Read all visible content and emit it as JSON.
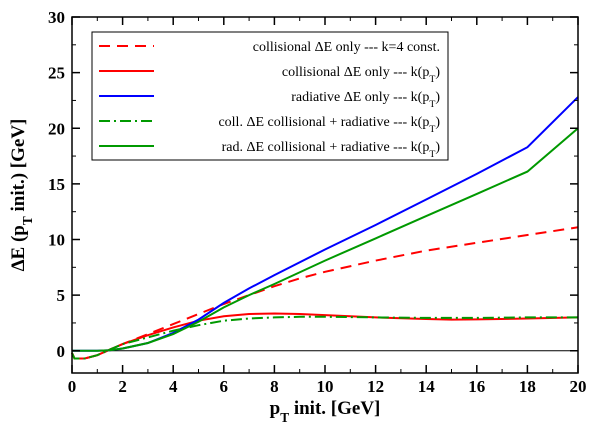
{
  "chart_data": {
    "type": "line",
    "title": "",
    "xlabel": {
      "main": "p",
      "sub": "T",
      "rest": " init. [GeV]"
    },
    "ylabel": {
      "pre": "ΔE (p",
      "sub": "T",
      "post": " init.) [GeV]"
    },
    "xlim": [
      0,
      20
    ],
    "ylim": [
      -2,
      30
    ],
    "xticks": [
      0,
      2,
      4,
      6,
      8,
      10,
      12,
      14,
      16,
      18,
      20
    ],
    "yticks": [
      0,
      5,
      10,
      15,
      20,
      25,
      30
    ],
    "legend_position": "top-left",
    "series": [
      {
        "name": "collisional ΔE only --- k=4 const.",
        "name_parts": {
          "pre": "collisional ΔE only --- k=4 const.",
          "sub": "",
          "post": ""
        },
        "color": "#ff0000",
        "dash": "dashed",
        "points": [
          [
            0,
            -0.2
          ],
          [
            0.1,
            -0.7
          ],
          [
            0.5,
            -0.7
          ],
          [
            1,
            -0.4
          ],
          [
            1.5,
            0.1
          ],
          [
            2,
            0.6
          ],
          [
            3,
            1.5
          ],
          [
            4,
            2.4
          ],
          [
            5,
            3.3
          ],
          [
            6,
            4.2
          ],
          [
            7,
            5.0
          ],
          [
            8,
            5.8
          ],
          [
            9,
            6.5
          ],
          [
            10,
            7.1
          ],
          [
            12,
            8.1
          ],
          [
            14,
            9.0
          ],
          [
            16,
            9.7
          ],
          [
            18,
            10.4
          ],
          [
            20,
            11.1
          ]
        ]
      },
      {
        "name": "collisional ΔE only --- k(pT)",
        "name_parts": {
          "pre": "collisional ΔE only --- k(p",
          "sub": "T",
          "post": ")"
        },
        "color": "#ff0000",
        "dash": "solid",
        "points": [
          [
            0,
            -0.2
          ],
          [
            0.1,
            -0.7
          ],
          [
            0.5,
            -0.7
          ],
          [
            1,
            -0.4
          ],
          [
            1.5,
            0.1
          ],
          [
            2,
            0.6
          ],
          [
            3,
            1.4
          ],
          [
            4,
            2.1
          ],
          [
            5,
            2.7
          ],
          [
            6,
            3.1
          ],
          [
            7,
            3.3
          ],
          [
            8,
            3.35
          ],
          [
            9,
            3.3
          ],
          [
            10,
            3.2
          ],
          [
            12,
            3.0
          ],
          [
            14,
            2.85
          ],
          [
            15,
            2.8
          ],
          [
            16,
            2.82
          ],
          [
            18,
            2.9
          ],
          [
            20,
            3.0
          ]
        ]
      },
      {
        "name": "radiative ΔE only --- k(pT)",
        "name_parts": {
          "pre": "radiative ΔE only --- k(p",
          "sub": "T",
          "post": ")"
        },
        "color": "#0000ff",
        "dash": "solid",
        "points": [
          [
            0,
            0
          ],
          [
            1,
            0
          ],
          [
            1.5,
            0.05
          ],
          [
            2,
            0.2
          ],
          [
            3,
            0.7
          ],
          [
            4,
            1.6
          ],
          [
            5,
            2.8
          ],
          [
            6,
            4.3
          ],
          [
            7,
            5.6
          ],
          [
            8,
            6.8
          ],
          [
            10,
            9.1
          ],
          [
            12,
            11.3
          ],
          [
            14,
            13.6
          ],
          [
            16,
            15.9
          ],
          [
            18,
            18.3
          ],
          [
            20,
            22.8
          ]
        ]
      },
      {
        "name": "coll. ΔE collisional + radiative --- k(pT)",
        "name_parts": {
          "pre": "coll. ΔE collisional + radiative --- k(p",
          "sub": "T",
          "post": ")"
        },
        "color": "#009900",
        "dash": "dashdot",
        "points": [
          [
            0,
            -0.2
          ],
          [
            0.1,
            -0.7
          ],
          [
            0.5,
            -0.7
          ],
          [
            1,
            -0.4
          ],
          [
            1.5,
            0.1
          ],
          [
            2,
            0.6
          ],
          [
            3,
            1.2
          ],
          [
            4,
            1.8
          ],
          [
            5,
            2.3
          ],
          [
            6,
            2.7
          ],
          [
            7,
            2.9
          ],
          [
            8,
            3.0
          ],
          [
            9,
            3.05
          ],
          [
            10,
            3.05
          ],
          [
            12,
            3.0
          ],
          [
            14,
            2.95
          ],
          [
            16,
            2.95
          ],
          [
            18,
            3.0
          ],
          [
            20,
            3.0
          ]
        ]
      },
      {
        "name": "rad. ΔE collisional + radiative --- k(pT)",
        "name_parts": {
          "pre": "rad. ΔE collisional + radiative --- k(p",
          "sub": "T",
          "post": ")"
        },
        "color": "#009900",
        "dash": "solid",
        "points": [
          [
            0,
            0
          ],
          [
            1,
            0
          ],
          [
            1.5,
            0.05
          ],
          [
            2,
            0.2
          ],
          [
            3,
            0.7
          ],
          [
            4,
            1.5
          ],
          [
            5,
            2.6
          ],
          [
            6,
            3.9
          ],
          [
            7,
            5.0
          ],
          [
            8,
            6.0
          ],
          [
            10,
            8.1
          ],
          [
            12,
            10.1
          ],
          [
            14,
            12.1
          ],
          [
            16,
            14.1
          ],
          [
            18,
            16.1
          ],
          [
            20,
            20.0
          ]
        ]
      }
    ]
  }
}
